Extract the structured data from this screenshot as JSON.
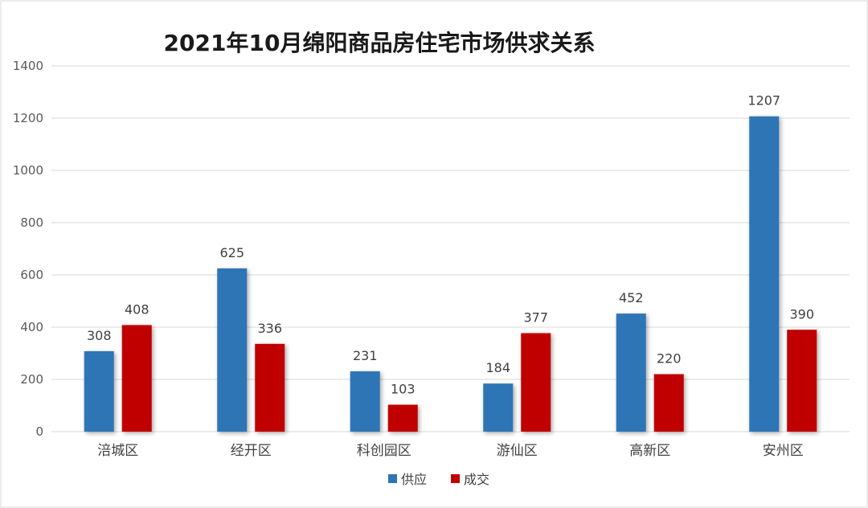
{
  "chart_data": {
    "type": "bar",
    "title": "2021年10月绵阳商品房住宅市场供求关系",
    "categories": [
      "涪城区",
      "经开区",
      "科创园区",
      "游仙区",
      "高新区",
      "安州区"
    ],
    "series": [
      {
        "name": "供应",
        "color": "#2e75b6",
        "values": [
          308,
          625,
          231,
          184,
          452,
          1207
        ]
      },
      {
        "name": "成交",
        "color": "#c00000",
        "values": [
          408,
          336,
          103,
          377,
          220,
          390
        ]
      }
    ],
    "ylim": [
      0,
      1400
    ],
    "yticks": [
      0,
      200,
      400,
      600,
      800,
      1000,
      1200,
      1400
    ],
    "grid": true,
    "legend_position": "bottom"
  }
}
